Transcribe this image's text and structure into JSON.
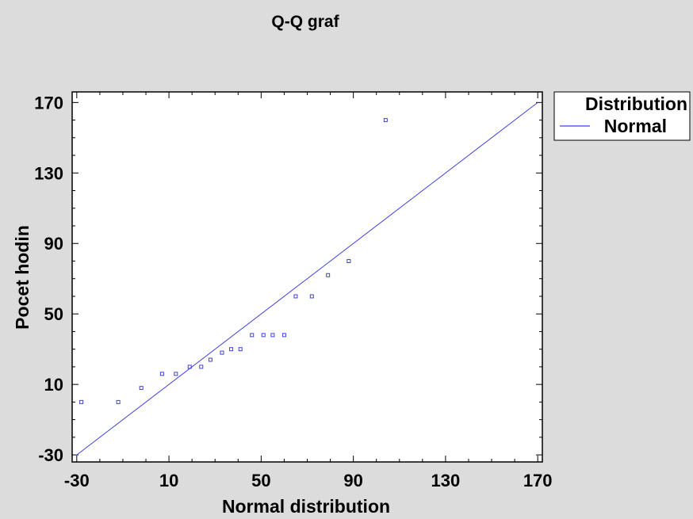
{
  "chart_data": {
    "type": "scatter",
    "title": "Q-Q graf",
    "xlabel": "Normal distribution",
    "ylabel": "Pocet hodin",
    "xlim": [
      -32,
      172
    ],
    "ylim": [
      -34,
      176
    ],
    "xticks": [
      -30,
      10,
      50,
      90,
      130,
      170
    ],
    "yticks": [
      -30,
      10,
      50,
      90,
      130,
      170
    ],
    "grid": false,
    "legend_position": "right",
    "legend": {
      "title": "Distribution",
      "entries": [
        {
          "name": "Normal",
          "color": "#4040e0"
        }
      ]
    },
    "reference_line": {
      "name": "Normal",
      "from": [
        -30,
        -30
      ],
      "to": [
        170,
        170
      ]
    },
    "points": [
      [
        -28,
        0
      ],
      [
        -12,
        0
      ],
      [
        -2,
        8
      ],
      [
        7,
        16
      ],
      [
        13,
        16
      ],
      [
        19,
        20
      ],
      [
        24,
        20
      ],
      [
        28,
        24
      ],
      [
        33,
        28
      ],
      [
        37,
        30
      ],
      [
        41,
        30
      ],
      [
        46,
        38
      ],
      [
        51,
        38
      ],
      [
        55,
        38
      ],
      [
        60,
        38
      ],
      [
        65,
        60
      ],
      [
        72,
        60
      ],
      [
        79,
        72
      ],
      [
        88,
        80
      ],
      [
        104,
        160
      ]
    ]
  },
  "colors": {
    "background": "#dcdcdc",
    "plot_background": "#ffffff",
    "series": "#4040e0",
    "axis": "#000000"
  }
}
